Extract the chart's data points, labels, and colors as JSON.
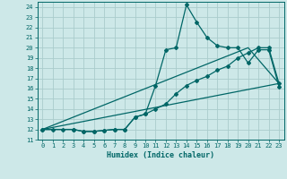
{
  "xlabel": "Humidex (Indice chaleur)",
  "bg_color": "#cde8e8",
  "grid_color": "#aacccc",
  "line_color": "#006666",
  "xlim": [
    -0.5,
    23.5
  ],
  "ylim": [
    11,
    24.5
  ],
  "xticks": [
    0,
    1,
    2,
    3,
    4,
    5,
    6,
    7,
    8,
    9,
    10,
    11,
    12,
    13,
    14,
    15,
    16,
    17,
    18,
    19,
    20,
    21,
    22,
    23
  ],
  "yticks": [
    11,
    12,
    13,
    14,
    15,
    16,
    17,
    18,
    19,
    20,
    21,
    22,
    23,
    24
  ],
  "line1_x": [
    0,
    1,
    2,
    3,
    4,
    5,
    6,
    7,
    8,
    9,
    10,
    11,
    12,
    13,
    14,
    15,
    16,
    17,
    18,
    19,
    20,
    21,
    22,
    23
  ],
  "line1_y": [
    12,
    12,
    12,
    12,
    11.8,
    11.8,
    11.9,
    12,
    12,
    13.2,
    13.5,
    16.3,
    19.8,
    20,
    24.2,
    22.5,
    21,
    20.2,
    20,
    20,
    18.5,
    19.8,
    19.8,
    16.2
  ],
  "line2_x": [
    0,
    3,
    4,
    5,
    6,
    7,
    8,
    9,
    10,
    11,
    12,
    13,
    14,
    15,
    16,
    17,
    18,
    19,
    20,
    21,
    22,
    23
  ],
  "line2_y": [
    12,
    12,
    11.8,
    11.8,
    11.9,
    12,
    12,
    13.2,
    13.5,
    14,
    14.5,
    15.5,
    16.3,
    16.8,
    17.2,
    17.8,
    18.2,
    19,
    19.5,
    20,
    20,
    16.5
  ],
  "line3_x": [
    0,
    23
  ],
  "line3_y": [
    12,
    16.5
  ],
  "line4_x": [
    0,
    20,
    23
  ],
  "line4_y": [
    12,
    20,
    16.5
  ]
}
